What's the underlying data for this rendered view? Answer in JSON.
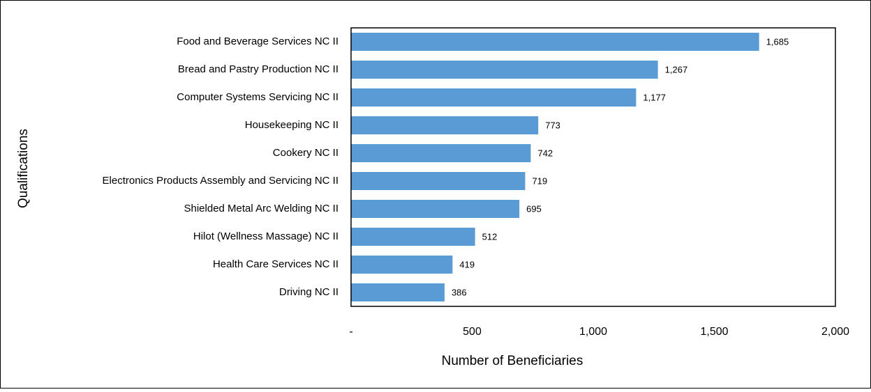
{
  "chart_data": {
    "type": "bar",
    "orientation": "horizontal",
    "xlabel": "Number of Beneficiaries",
    "ylabel": "Qualifications",
    "categories": [
      "Food and Beverage Services NC II",
      "Bread and Pastry Production NC II",
      "Computer Systems Servicing NC II",
      "Housekeeping NC II",
      "Cookery NC II",
      "Electronics Products Assembly and Servicing NC II",
      "Shielded Metal Arc Welding NC II",
      "Hilot (Wellness Massage) NC II",
      "Health Care Services NC II",
      "Driving NC II"
    ],
    "values": [
      1685,
      1267,
      1177,
      773,
      742,
      719,
      695,
      512,
      419,
      386
    ],
    "value_labels": [
      "1,685",
      "1,267",
      "1,177",
      "773",
      "742",
      "719",
      "695",
      "512",
      "419",
      "386"
    ],
    "color": "#5b9bd5",
    "xlim": [
      0,
      2000
    ],
    "xticks": [
      {
        "value": 0,
        "label": "-"
      },
      500,
      {
        "value": 1000,
        "label": "1,000"
      },
      {
        "value": 1500,
        "label": "1,500"
      },
      {
        "value": 2000,
        "label": "2,000"
      }
    ],
    "grid": false
  }
}
